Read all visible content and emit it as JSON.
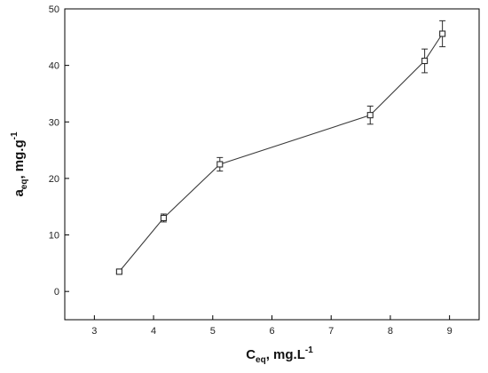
{
  "chart_data": {
    "type": "scatter",
    "title": "",
    "xlabel": {
      "main": "C",
      "sub": "eq",
      "rest": ", mg.L",
      "sup": "-1"
    },
    "ylabel": {
      "main": "a",
      "sub": "eq",
      "rest": ", mg.g",
      "sup": "-1"
    },
    "xlim": [
      2.5,
      9.5
    ],
    "ylim": [
      -5,
      50
    ],
    "xticks": [
      3,
      4,
      5,
      6,
      7,
      8,
      9
    ],
    "yticks": [
      0,
      10,
      20,
      30,
      40,
      50
    ],
    "xtick_labels": [
      "3",
      "4",
      "5",
      "6",
      "7",
      "8",
      "9"
    ],
    "ytick_labels": [
      "0",
      "10",
      "20",
      "30",
      "40",
      "50"
    ],
    "grid": false,
    "series": [
      {
        "x": [
          3.42,
          4.17,
          5.12,
          7.66,
          8.58,
          8.88
        ],
        "y": [
          3.5,
          13.0,
          22.5,
          31.2,
          40.8,
          45.6
        ],
        "err": [
          0.3,
          0.7,
          1.2,
          1.6,
          2.1,
          2.3
        ]
      }
    ]
  }
}
